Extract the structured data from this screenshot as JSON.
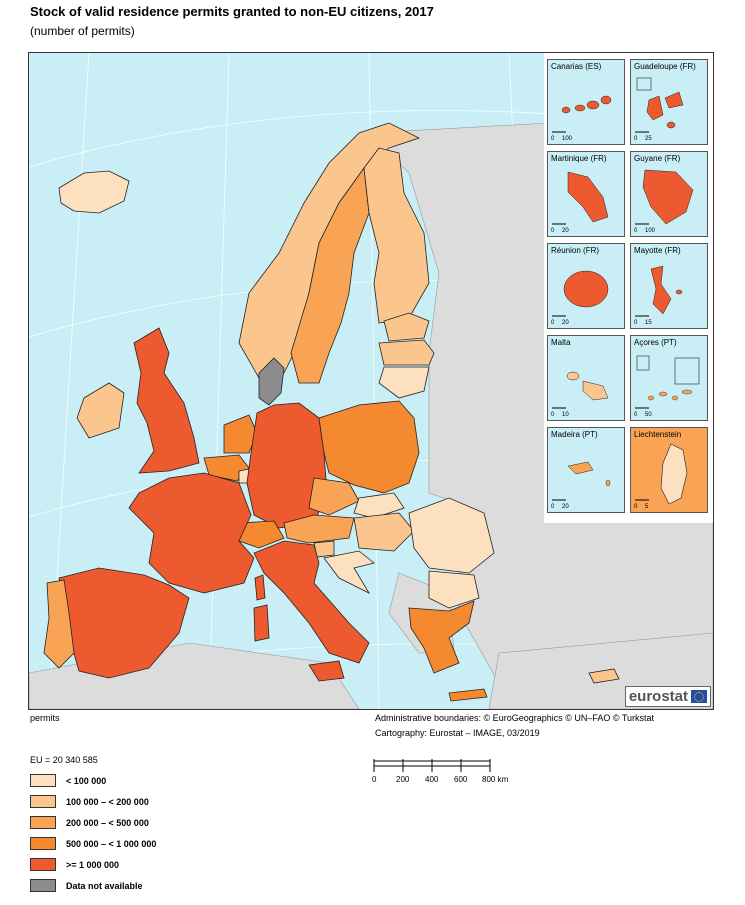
{
  "title": "Stock of valid residence permits granted to non-EU citizens, 2017",
  "subtitle": "(number of permits)",
  "map": {
    "countries": [
      {
        "name": "Iceland",
        "category": 0
      },
      {
        "name": "Norway",
        "category": 1
      },
      {
        "name": "Sweden",
        "category": 2
      },
      {
        "name": "Finland",
        "category": 1
      },
      {
        "name": "Denmark",
        "category": 5
      },
      {
        "name": "Estonia",
        "category": 1
      },
      {
        "name": "Latvia",
        "category": 1
      },
      {
        "name": "Lithuania",
        "category": 0
      },
      {
        "name": "Ireland",
        "category": 1
      },
      {
        "name": "United Kingdom",
        "category": 4
      },
      {
        "name": "Netherlands",
        "category": 3
      },
      {
        "name": "Belgium",
        "category": 3
      },
      {
        "name": "Luxembourg",
        "category": 0
      },
      {
        "name": "Germany",
        "category": 4
      },
      {
        "name": "Poland",
        "category": 3
      },
      {
        "name": "Czechia",
        "category": 2
      },
      {
        "name": "Slovakia",
        "category": 0
      },
      {
        "name": "Austria",
        "category": 2
      },
      {
        "name": "Hungary",
        "category": 1
      },
      {
        "name": "Slovenia",
        "category": 1
      },
      {
        "name": "Croatia",
        "category": 0
      },
      {
        "name": "Romania",
        "category": 0
      },
      {
        "name": "Bulgaria",
        "category": 0
      },
      {
        "name": "Switzerland",
        "category": 3
      },
      {
        "name": "France",
        "category": 4
      },
      {
        "name": "Spain",
        "category": 4
      },
      {
        "name": "Portugal",
        "category": 2
      },
      {
        "name": "Italy",
        "category": 4
      },
      {
        "name": "Greece",
        "category": 3
      },
      {
        "name": "Cyprus",
        "category": 1
      }
    ]
  },
  "insets": [
    {
      "label": "Canarias (ES)",
      "scale_end": "100",
      "category": 4
    },
    {
      "label": "Guadeloupe (FR)",
      "scale_end": "25",
      "category": 4
    },
    {
      "label": "Martinique (FR)",
      "scale_end": "20",
      "category": 4
    },
    {
      "label": "Guyane (FR)",
      "scale_end": "100",
      "category": 4
    },
    {
      "label": "Réunion (FR)",
      "scale_end": "20",
      "category": 4
    },
    {
      "label": "Mayotte (FR)",
      "scale_end": "15",
      "category": 4
    },
    {
      "label": "Malta",
      "scale_end": "10",
      "category": 1
    },
    {
      "label": "Açores (PT)",
      "scale_end": "50",
      "category": 2
    },
    {
      "label": "Madeira (PT)",
      "scale_end": "20",
      "category": 2
    },
    {
      "label": "Liechtenstein",
      "scale_end": "5",
      "category": 0
    }
  ],
  "inset_scale_start": "0",
  "logo_text": "eurostat",
  "under_left": "permits",
  "credits": {
    "boundaries": "Administrative boundaries: © EuroGeographics © UN–FAO © Turkstat",
    "cartography": "Cartography: Eurostat – IMAGE, 03/2019"
  },
  "eu_total": "EU = 20 340 585",
  "legend": [
    {
      "label": "< 100 000",
      "color": "#fde0c0"
    },
    {
      "label": "100 000 – < 200 000",
      "color": "#fbc68e"
    },
    {
      "label": "200 000 – < 500 000",
      "color": "#f9a455"
    },
    {
      "label": "500 000 – < 1 000 000",
      "color": "#f5892f"
    },
    {
      "label": ">= 1 000 000",
      "color": "#ee5a2f"
    },
    {
      "label": "Data not available",
      "color": "#8c8c8c"
    }
  ],
  "colors": {
    "sea": "#c9eef6",
    "non_eu_land": "#dcdcdc",
    "border": "#222222"
  },
  "scale": {
    "labels": [
      "0",
      "200",
      "400",
      "600",
      "800 km"
    ]
  }
}
